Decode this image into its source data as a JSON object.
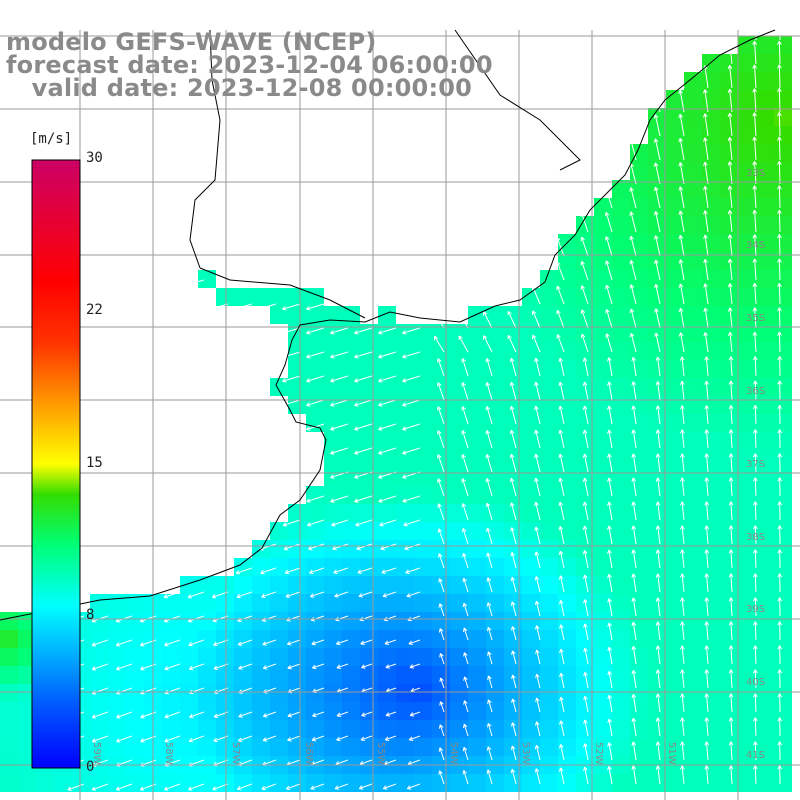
{
  "title": {
    "line1": "modelo GEFS-WAVE (NCEP)",
    "line2": "forecast date: 2023-12-04 06:00:00",
    "line3": "   valid date: 2023-12-08 00:00:00"
  },
  "colorbar": {
    "unit": "[m/s]",
    "ticks": [
      {
        "value": 30,
        "label": "30"
      },
      {
        "value": 22,
        "label": "22"
      },
      {
        "value": 15,
        "label": "15"
      },
      {
        "value": 8,
        "label": "8"
      },
      {
        "value": 0,
        "label": "0"
      }
    ],
    "colors": [
      "#0000ff",
      "#0055ff",
      "#00aaff",
      "#00ffff",
      "#00ff77",
      "#33dd00",
      "#ffff00",
      "#ff9900",
      "#ff3300",
      "#ff0000",
      "#cc0066"
    ]
  },
  "lat_labels": [
    "33S",
    "34S",
    "35S",
    "36S",
    "37S",
    "38S",
    "39S",
    "40S",
    "41S"
  ],
  "lon_labels": [
    "59W",
    "58W",
    "57W",
    "56W",
    "55W",
    "54W",
    "53W",
    "52W",
    "51W"
  ],
  "field": {
    "variable": "wind speed",
    "units": "m/s",
    "region": "Rio de la Plata / southwestern Atlantic",
    "gulf_speed": 9.5,
    "northeast_speed": 12.5,
    "southern_min_speed": 3,
    "eastern_speed": 9.5
  },
  "colors": {
    "land": "#ffffff",
    "grid": "#9a9a9a",
    "coast": "#000000",
    "arrows": "#ffffff",
    "title": "#8a8a8a"
  }
}
